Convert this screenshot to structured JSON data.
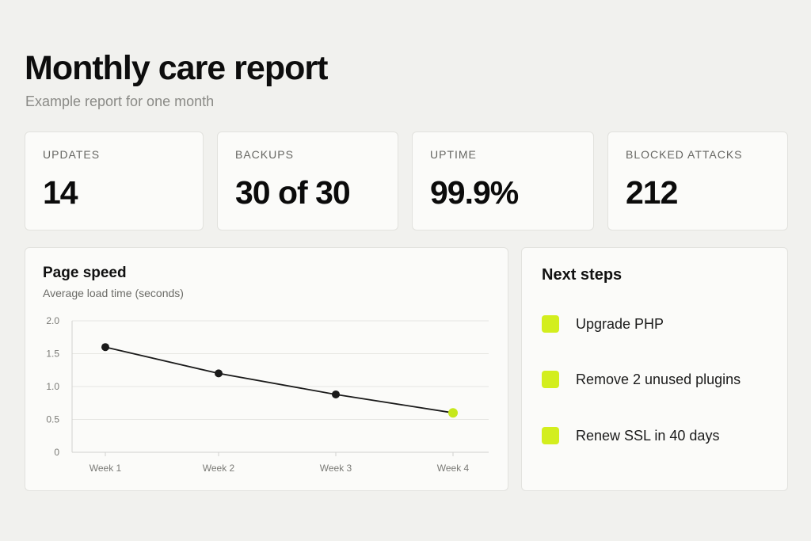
{
  "header": {
    "title": "Monthly care report",
    "subtitle": "Example report for one month"
  },
  "stats": [
    {
      "label": "UPDATES",
      "value": "14"
    },
    {
      "label": "BACKUPS",
      "value": "30 of 30"
    },
    {
      "label": "UPTIME",
      "value": "99.9%"
    },
    {
      "label": "BLOCKED ATTACKS",
      "value": "212"
    }
  ],
  "chart_data": {
    "type": "line",
    "title": "Page speed",
    "subtitle": "Average load time (seconds)",
    "categories": [
      "Week 1",
      "Week 2",
      "Week 3",
      "Week 4"
    ],
    "series": [
      {
        "values": [
          1.6,
          1.2,
          0.88,
          0.6
        ]
      }
    ],
    "yticks": [
      "0",
      "0.5",
      "1.0",
      "1.5",
      "2.0"
    ],
    "ylim": [
      0,
      2.0
    ],
    "grid": true,
    "line_color": "#1a1a1a",
    "highlight_color": "#c6e81c",
    "highlight_last_point": true
  },
  "next_steps": {
    "title": "Next steps",
    "check_color": "#d3ee1e",
    "items": [
      {
        "label": "Upgrade PHP"
      },
      {
        "label": "Remove 2 unused plugins"
      },
      {
        "label": "Renew SSL in 40 days"
      }
    ]
  }
}
